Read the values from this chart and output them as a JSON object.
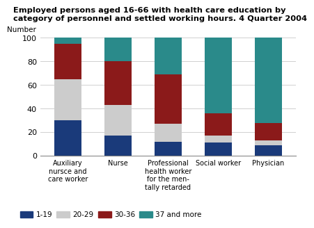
{
  "title_line1": "Employed persons aged 16-66 with health care education by",
  "title_line2": "category of personnel and settled working hours. 4 Quarter 2004",
  "ylabel": "Number",
  "categories": [
    "Auxiliary\nnursce and\ncare worker",
    "Nurse",
    "Professional\nhealth worker\nfor the men-\ntally retarded",
    "Social worker",
    "Physician"
  ],
  "series": {
    "1-19": [
      30,
      17,
      12,
      11,
      9
    ],
    "20-29": [
      35,
      26,
      15,
      6,
      4
    ],
    "30-36": [
      30,
      37,
      42,
      19,
      15
    ],
    "37 and more": [
      5,
      20,
      31,
      64,
      72
    ]
  },
  "colors": {
    "1-19": "#1a3a7a",
    "20-29": "#cccccc",
    "30-36": "#8b1a1a",
    "37 and more": "#2a8a8a"
  },
  "ylim": [
    0,
    100
  ],
  "yticks": [
    0,
    20,
    40,
    60,
    80,
    100
  ],
  "bar_width": 0.55
}
